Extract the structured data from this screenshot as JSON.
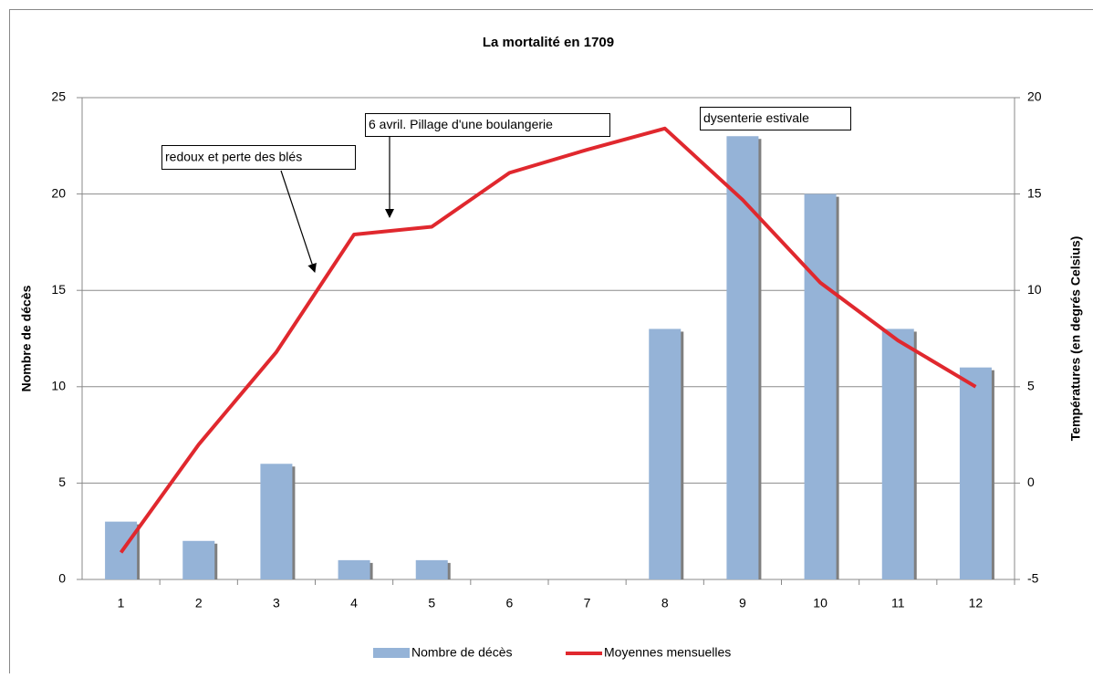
{
  "chart_data": {
    "type": "bar-line",
    "title": "La mortalité en 1709",
    "y_label": "Nombre de décès",
    "y2_label": "Températures (en degrés Celsius)",
    "categories": [
      "1",
      "2",
      "3",
      "4",
      "5",
      "6",
      "7",
      "8",
      "9",
      "10",
      "11",
      "12"
    ],
    "series": [
      {
        "name": "Nombre de décès",
        "type": "bar",
        "color": "#95b3d7",
        "values": [
          3,
          2,
          6,
          1,
          1,
          0,
          0,
          13,
          23,
          20,
          13,
          11
        ]
      },
      {
        "name": "Moyennes mensuelles",
        "type": "line",
        "axis": "y2",
        "color": "#e0282e",
        "values": [
          -3.6,
          2.0,
          6.8,
          12.9,
          13.3,
          16.1,
          17.3,
          18.4,
          14.7,
          10.4,
          7.4,
          5.0
        ]
      }
    ],
    "ylim": [
      0,
      25
    ],
    "yticks": [
      0,
      5,
      10,
      15,
      20,
      25
    ],
    "y2lim": [
      -5,
      20
    ],
    "y2ticks": [
      -5,
      0,
      5,
      10,
      15,
      20
    ],
    "grid": true,
    "annotations": [
      "redoux et perte des blés",
      "6 avril. Pillage d'une boulangerie",
      "dysenterie estivale"
    ]
  }
}
